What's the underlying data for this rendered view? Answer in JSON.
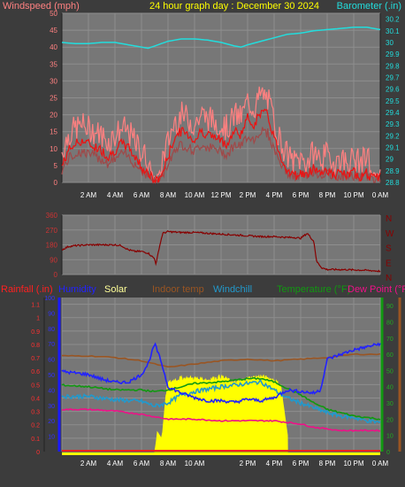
{
  "header": {
    "left_label": "Windspeed (mph)",
    "title": "24 hour graph day : December 30 2024",
    "right_label": "Barometer (.in)"
  },
  "colors": {
    "background": "#3c3c3c",
    "plot_bg": "#777777",
    "grid": "#8e8e8e",
    "wind_gust": "#ff8080",
    "wind_avg": "#ee1111",
    "wind_dark": "#a04848",
    "barometer": "#22dddd",
    "direction": "#880000",
    "rain": "#ff2020",
    "humidity": "#2222ff",
    "solar": "#ffff00",
    "indoor": "#9a5522",
    "windchill": "#2299cc",
    "temperature": "#119911",
    "dewpoint": "#ee1188",
    "title_yellow": "#ffff00"
  },
  "x_axis": {
    "ticks": [
      "2 AM",
      "4 AM",
      "6 AM",
      "8 AM",
      "10 AM",
      "12 PM",
      "2 PM",
      "4 PM",
      "6 PM",
      "8 PM",
      "10 PM",
      "0 AM"
    ],
    "ticks_bottom": [
      "2 AM",
      "4 AM",
      "6 AM",
      "8 AM",
      "10 AM",
      "2 PM",
      "4 PM",
      "6 PM",
      "8 PM",
      "10 PM",
      "0 AM"
    ]
  },
  "panel1": {
    "left_ticks": [
      "0",
      "5",
      "10",
      "15",
      "20",
      "25",
      "30",
      "35",
      "40",
      "45",
      "50"
    ],
    "right_ticks": [
      "28.8",
      "28.9",
      "29",
      "29.1",
      "29.2",
      "29.3",
      "29.4",
      "29.5",
      "29.6",
      "29.7",
      "29.8",
      "29.9",
      "30",
      "30.1",
      "30.2"
    ]
  },
  "panel2": {
    "left_ticks": [
      "0",
      "90",
      "180",
      "270",
      "360"
    ],
    "compass": [
      "N",
      "W",
      "S",
      "E",
      "N"
    ]
  },
  "panel3": {
    "legend": {
      "rainfall": "Rainfall (.in)",
      "humidity": "Humidity",
      "solar": "Solar",
      "indoor": "Indoor temp",
      "windchill": "Windchill",
      "temperature": "Temperature (°F)",
      "dewpoint": "Dew Point (°F)"
    },
    "left_ticks": [
      "0",
      "0.1",
      "0.2",
      "0.3",
      "0.4",
      "0.5",
      "0.6",
      "0.7",
      "0.8",
      "0.9",
      "1",
      "1.1"
    ],
    "humidity_ticks": [
      "10",
      "20",
      "30",
      "40",
      "50",
      "60",
      "70",
      "80",
      "90",
      "100"
    ],
    "right_ticks": [
      "0",
      "10",
      "20",
      "30",
      "40",
      "50",
      "60",
      "70",
      "80",
      "90"
    ]
  },
  "chart_data": [
    {
      "type": "line",
      "title": "24 hour graph day : December 30 2024",
      "x_unit": "hour",
      "series": [
        {
          "name": "Windspeed (mph)",
          "axis": "left",
          "ylim": [
            0,
            50
          ],
          "x": [
            0,
            0.5,
            1,
            1.5,
            2,
            2.5,
            3,
            3.5,
            4,
            4.5,
            5,
            5.5,
            6,
            6.5,
            7,
            7.5,
            8,
            8.5,
            9,
            9.5,
            10,
            10.5,
            11,
            11.5,
            12,
            12.5,
            13,
            13.5,
            14,
            14.5,
            15,
            15.5,
            16,
            16.5,
            17,
            17.5,
            18,
            18.5,
            19,
            19.5,
            20,
            20.5,
            21,
            21.5,
            22,
            22.5,
            23,
            23.5,
            24
          ],
          "values": [
            5,
            10,
            12,
            13,
            12,
            11,
            10,
            8,
            10,
            12,
            11,
            8,
            5,
            3,
            0,
            2,
            8,
            14,
            16,
            15,
            13,
            16,
            15,
            14,
            13,
            12,
            16,
            15,
            20,
            18,
            22,
            21,
            14,
            8,
            4,
            2,
            3,
            2,
            5,
            3,
            4,
            2,
            3,
            2,
            3,
            2,
            3,
            1,
            2
          ]
        },
        {
          "name": "Barometer (.in)",
          "axis": "right",
          "ylim": [
            28.8,
            30.25
          ],
          "x": [
            0,
            1,
            2,
            3,
            4,
            5,
            6,
            6.5,
            7,
            8,
            9,
            10,
            11,
            12,
            13,
            13.5,
            14,
            15,
            16,
            17,
            18,
            19,
            20,
            21,
            22,
            23,
            24
          ],
          "values": [
            30.0,
            29.99,
            29.99,
            30.0,
            30.0,
            29.98,
            29.96,
            29.95,
            29.97,
            30.01,
            30.03,
            30.03,
            30.02,
            30.0,
            29.97,
            29.96,
            29.98,
            30.01,
            30.04,
            30.07,
            30.08,
            30.1,
            30.11,
            30.12,
            30.13,
            30.13,
            30.11
          ]
        }
      ]
    },
    {
      "type": "line",
      "x_unit": "hour",
      "ylim": [
        0,
        360
      ],
      "series": [
        {
          "name": "Wind direction",
          "x": [
            0,
            0.5,
            1,
            2,
            3,
            4,
            4.5,
            5,
            5.5,
            6,
            6.5,
            7,
            7.1,
            7.3,
            7.6,
            8,
            9,
            10,
            11,
            12,
            13,
            14,
            15,
            16,
            17,
            17.5,
            18,
            18.5,
            19,
            19.2,
            19.6,
            20,
            21,
            22,
            23,
            24
          ],
          "values": [
            150,
            170,
            175,
            180,
            180,
            180,
            175,
            150,
            140,
            140,
            130,
            95,
            60,
            150,
            250,
            260,
            255,
            255,
            250,
            245,
            240,
            235,
            230,
            230,
            225,
            225,
            220,
            250,
            200,
            80,
            40,
            30,
            30,
            28,
            25,
            20
          ]
        }
      ]
    },
    {
      "type": "line",
      "x_unit": "hour",
      "series": [
        {
          "name": "Rainfall (.in)",
          "axis": "left",
          "ylim": [
            0,
            1.15
          ],
          "x": [
            0,
            24
          ],
          "values": [
            0,
            0
          ]
        },
        {
          "name": "Humidity",
          "axis": "humidity",
          "ylim": [
            0,
            100
          ],
          "x": [
            0,
            1,
            2,
            3,
            4,
            5,
            6,
            6.5,
            7,
            7.5,
            8,
            9,
            10,
            11,
            12,
            13,
            14,
            15,
            16,
            17,
            18,
            19,
            19.5,
            20,
            21,
            22,
            23,
            24
          ],
          "values": [
            52,
            51,
            50,
            47,
            45,
            45,
            50,
            57,
            70,
            58,
            42,
            38,
            35,
            33,
            33,
            32,
            34,
            33,
            35,
            40,
            39,
            38,
            40,
            60,
            63,
            66,
            68,
            70
          ]
        },
        {
          "name": "Solar",
          "axis": "right",
          "ylim": [
            0,
            95
          ],
          "x": [
            7.0,
            7.1,
            7.2,
            7.5,
            7.6,
            7.8,
            8.0,
            8.5,
            9,
            10,
            11,
            12,
            13,
            14,
            15,
            16,
            16.5,
            17.0,
            17.01
          ],
          "values": [
            0,
            5,
            12,
            8,
            12,
            30,
            42,
            44,
            45,
            45,
            44,
            46,
            42,
            45,
            46,
            44,
            40,
            10,
            0
          ]
        },
        {
          "name": "Indoor temp",
          "axis": "right",
          "ylim": [
            0,
            95
          ],
          "x": [
            0,
            2,
            4,
            6,
            8,
            10,
            12,
            14,
            16,
            18,
            20,
            22,
            24
          ],
          "values": [
            59,
            59,
            58,
            56,
            52,
            54,
            56,
            57,
            56,
            57,
            58,
            60,
            60
          ]
        },
        {
          "name": "Windchill",
          "axis": "right",
          "ylim": [
            0,
            95
          ],
          "x": [
            0,
            2,
            4,
            6,
            7,
            8,
            9,
            10,
            12,
            14,
            15,
            16,
            17,
            18,
            19,
            20,
            21,
            22,
            23,
            24
          ],
          "values": [
            34,
            34,
            32,
            31,
            28,
            30,
            35,
            37,
            40,
            42,
            43,
            38,
            33,
            30,
            27,
            24,
            22,
            21,
            19,
            18
          ]
        },
        {
          "name": "Temperature (°F)",
          "axis": "right",
          "ylim": [
            0,
            95
          ],
          "x": [
            0,
            2,
            4,
            6,
            7,
            8,
            9,
            10,
            12,
            14,
            15,
            16,
            17,
            18,
            19,
            20,
            21,
            22,
            23,
            24
          ],
          "values": [
            41,
            40,
            38,
            38,
            37,
            38,
            40,
            42,
            43,
            45,
            45,
            43,
            39,
            35,
            30,
            26,
            24,
            22,
            21,
            20
          ]
        },
        {
          "name": "Dew Point (°F)",
          "axis": "right",
          "ylim": [
            0,
            95
          ],
          "x": [
            0,
            2,
            4,
            6,
            8,
            10,
            12,
            14,
            16,
            17,
            18,
            19,
            20,
            21,
            22,
            23,
            24
          ],
          "values": [
            26,
            26,
            25,
            23,
            20,
            20,
            19,
            19,
            19,
            18,
            17,
            15,
            14,
            13,
            13,
            13,
            13
          ]
        }
      ]
    }
  ]
}
